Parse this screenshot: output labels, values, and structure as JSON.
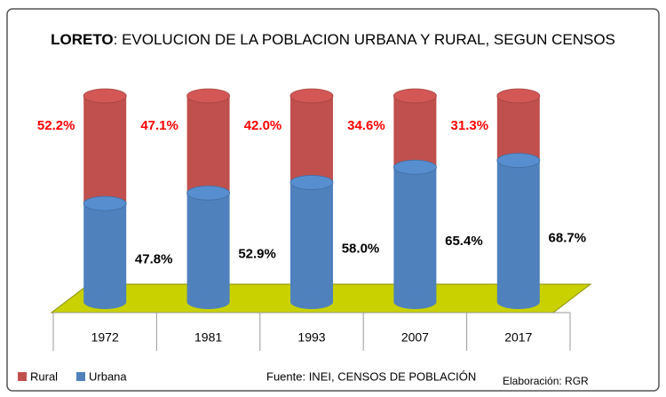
{
  "chart_data": {
    "type": "stacked_bar",
    "title_bold": "LORETO",
    "title": ":  EVOLUCION DE LA POBLACION URBANA Y RURAL, SEGUN CENSOS",
    "categories": [
      "1972",
      "1981",
      "1993",
      "2007",
      "2017"
    ],
    "series": [
      {
        "name": "Urbana",
        "color": "#4f81bd",
        "values": [
          47.8,
          52.9,
          58.0,
          65.4,
          68.7
        ],
        "value_labels": [
          "47.8%",
          "52.9%",
          "58.0%",
          "65.4%",
          "68.7%"
        ],
        "label_color": "#000000"
      },
      {
        "name": "Rural",
        "color": "#c0504d",
        "values": [
          52.2,
          47.1,
          42.0,
          34.6,
          31.3
        ],
        "value_labels": [
          "52.2%",
          "47.1%",
          "42.0%",
          "34.6%",
          "31.3%"
        ],
        "label_color": "#ff0000"
      }
    ],
    "ylim": [
      0,
      100
    ],
    "legend_order": [
      1,
      0
    ],
    "source": "Fuente: INEI, CENSOS  DE POBLACIÓN",
    "credit": "Elaboración: RGR"
  }
}
